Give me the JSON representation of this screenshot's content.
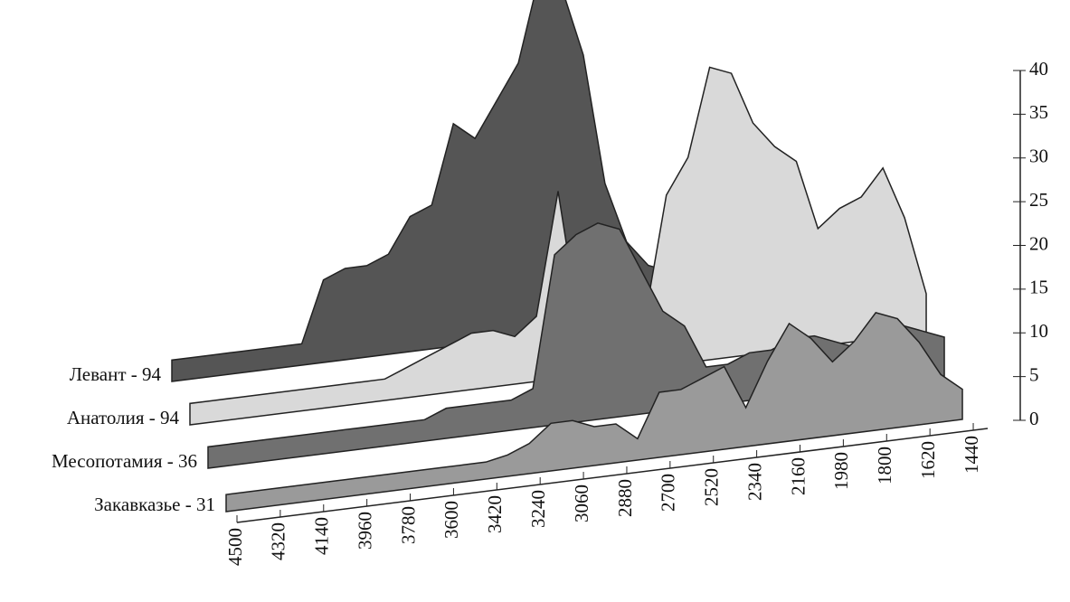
{
  "chart_data": {
    "type": "area3d",
    "x": [
      4500,
      4410,
      4320,
      4230,
      4140,
      4050,
      3960,
      3870,
      3780,
      3690,
      3600,
      3510,
      3420,
      3330,
      3240,
      3150,
      3060,
      2970,
      2880,
      2790,
      2700,
      2610,
      2520,
      2430,
      2340,
      2250,
      2160,
      2070,
      1980,
      1890,
      1800,
      1710,
      1620,
      1530,
      1440
    ],
    "xlim": [
      4500,
      1380
    ],
    "xticks": [
      4500,
      4320,
      4140,
      3960,
      3780,
      3600,
      3420,
      3240,
      3060,
      2880,
      2700,
      2520,
      2340,
      2160,
      1980,
      1800,
      1620,
      1440
    ],
    "ylim": [
      0,
      40
    ],
    "yticks": [
      0,
      5,
      10,
      15,
      20,
      25,
      30,
      35,
      40
    ],
    "series": [
      {
        "name": "Левант - 94",
        "color": "#555555",
        "values": [
          1,
          1,
          1,
          1,
          1,
          1,
          1,
          8,
          9,
          9,
          10,
          14,
          15,
          24,
          22,
          26,
          30,
          40,
          38,
          30,
          15,
          8,
          5,
          4,
          3,
          3,
          3,
          3,
          3,
          3,
          2,
          2,
          2,
          2,
          2
        ]
      },
      {
        "name": "Анатолия - 94",
        "color": "#d9d9d9",
        "values": [
          1,
          1,
          1,
          1,
          1,
          1,
          1,
          1,
          1,
          1,
          2,
          3,
          4,
          5,
          5,
          4,
          6,
          20,
          4,
          3,
          3,
          4,
          18,
          22,
          32,
          31,
          25,
          22,
          20,
          12,
          14,
          15,
          18,
          12,
          3
        ]
      },
      {
        "name": "Месопотамия - 36",
        "color": "#707070",
        "values": [
          1,
          1,
          1,
          1,
          1,
          1,
          1,
          1,
          1,
          1,
          1,
          2,
          2,
          2,
          2,
          3,
          18,
          20,
          21,
          20,
          15,
          10,
          8,
          3,
          3,
          4,
          4,
          5,
          5,
          4,
          3,
          5,
          5,
          4,
          3
        ]
      },
      {
        "name": "Закавказье - 31",
        "color": "#9a9a9a",
        "values": [
          0.5,
          0.5,
          0.5,
          0.5,
          0.5,
          0.5,
          0.5,
          0.5,
          0.5,
          0.5,
          0.5,
          0.5,
          0.5,
          1,
          2,
          4,
          4,
          3,
          3,
          1,
          6,
          6,
          7,
          8,
          3,
          8,
          12,
          10,
          7,
          9,
          12,
          11,
          8,
          4,
          2
        ]
      }
    ]
  }
}
